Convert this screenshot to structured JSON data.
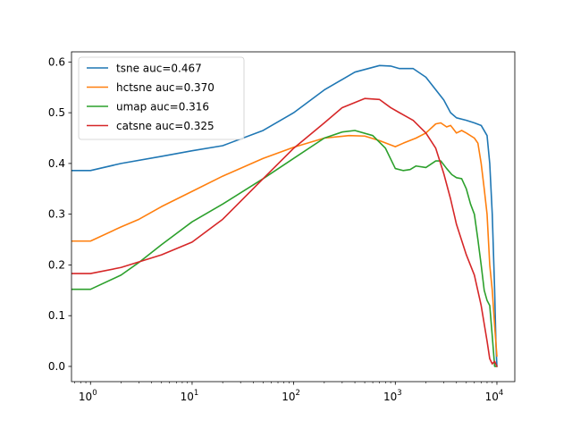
{
  "chart_data": {
    "type": "line",
    "title": "",
    "xlabel": "",
    "ylabel": "",
    "xscale": "log",
    "xlim": [
      0.65,
      15000
    ],
    "ylim": [
      -0.03,
      0.62
    ],
    "grid": false,
    "legend_position": "top-left",
    "x_ticks": [
      {
        "value": 1,
        "base": "10",
        "exp": "0"
      },
      {
        "value": 10,
        "base": "10",
        "exp": "1"
      },
      {
        "value": 100,
        "base": "10",
        "exp": "2"
      },
      {
        "value": 1000,
        "base": "10",
        "exp": "3"
      },
      {
        "value": 10000,
        "base": "10",
        "exp": "4"
      }
    ],
    "y_ticks": [
      {
        "value": 0.0,
        "label": "0.0"
      },
      {
        "value": 0.1,
        "label": "0.1"
      },
      {
        "value": 0.2,
        "label": "0.2"
      },
      {
        "value": 0.3,
        "label": "0.3"
      },
      {
        "value": 0.4,
        "label": "0.4"
      },
      {
        "value": 0.5,
        "label": "0.5"
      },
      {
        "value": 0.6,
        "label": "0.6"
      }
    ],
    "series": [
      {
        "name": "tsne auc=0.467",
        "color": "#1f77b4",
        "points": [
          [
            0.65,
            0.386
          ],
          [
            1,
            0.386
          ],
          [
            2,
            0.4
          ],
          [
            5,
            0.414
          ],
          [
            10,
            0.425
          ],
          [
            20,
            0.435
          ],
          [
            50,
            0.465
          ],
          [
            100,
            0.5
          ],
          [
            200,
            0.545
          ],
          [
            400,
            0.58
          ],
          [
            700,
            0.593
          ],
          [
            900,
            0.592
          ],
          [
            1100,
            0.587
          ],
          [
            1500,
            0.587
          ],
          [
            2000,
            0.57
          ],
          [
            3000,
            0.525
          ],
          [
            3500,
            0.5
          ],
          [
            4000,
            0.49
          ],
          [
            5000,
            0.485
          ],
          [
            6000,
            0.48
          ],
          [
            7000,
            0.475
          ],
          [
            8000,
            0.455
          ],
          [
            8500,
            0.4
          ],
          [
            9000,
            0.3
          ],
          [
            9500,
            0.15
          ],
          [
            9800,
            0.04
          ],
          [
            10000,
            0.0
          ]
        ]
      },
      {
        "name": "hctsne auc=0.370",
        "color": "#ff7f0e",
        "points": [
          [
            0.65,
            0.247
          ],
          [
            1,
            0.247
          ],
          [
            2,
            0.275
          ],
          [
            3,
            0.29
          ],
          [
            5,
            0.315
          ],
          [
            10,
            0.345
          ],
          [
            20,
            0.375
          ],
          [
            50,
            0.41
          ],
          [
            100,
            0.432
          ],
          [
            200,
            0.45
          ],
          [
            350,
            0.455
          ],
          [
            500,
            0.454
          ],
          [
            700,
            0.445
          ],
          [
            1000,
            0.433
          ],
          [
            1200,
            0.44
          ],
          [
            1600,
            0.45
          ],
          [
            2000,
            0.46
          ],
          [
            2500,
            0.478
          ],
          [
            2800,
            0.48
          ],
          [
            3200,
            0.472
          ],
          [
            3500,
            0.475
          ],
          [
            4000,
            0.46
          ],
          [
            4500,
            0.465
          ],
          [
            5000,
            0.46
          ],
          [
            6000,
            0.45
          ],
          [
            6500,
            0.44
          ],
          [
            7000,
            0.4
          ],
          [
            7500,
            0.35
          ],
          [
            8000,
            0.3
          ],
          [
            8500,
            0.2
          ],
          [
            9000,
            0.15
          ],
          [
            9500,
            0.08
          ],
          [
            10000,
            0.02
          ]
        ]
      },
      {
        "name": "umap auc=0.316",
        "color": "#2ca02c",
        "points": [
          [
            0.65,
            0.152
          ],
          [
            1,
            0.152
          ],
          [
            2,
            0.18
          ],
          [
            3,
            0.205
          ],
          [
            5,
            0.24
          ],
          [
            10,
            0.285
          ],
          [
            20,
            0.32
          ],
          [
            50,
            0.37
          ],
          [
            100,
            0.41
          ],
          [
            200,
            0.45
          ],
          [
            300,
            0.462
          ],
          [
            400,
            0.465
          ],
          [
            600,
            0.455
          ],
          [
            800,
            0.43
          ],
          [
            1000,
            0.39
          ],
          [
            1200,
            0.386
          ],
          [
            1400,
            0.388
          ],
          [
            1600,
            0.395
          ],
          [
            2000,
            0.392
          ],
          [
            2500,
            0.405
          ],
          [
            2800,
            0.405
          ],
          [
            3200,
            0.39
          ],
          [
            3600,
            0.378
          ],
          [
            4000,
            0.372
          ],
          [
            4500,
            0.37
          ],
          [
            5000,
            0.35
          ],
          [
            5500,
            0.32
          ],
          [
            6000,
            0.3
          ],
          [
            6500,
            0.25
          ],
          [
            7000,
            0.2
          ],
          [
            7500,
            0.15
          ],
          [
            8000,
            0.13
          ],
          [
            8500,
            0.12
          ],
          [
            9000,
            0.06
          ],
          [
            9500,
            0.0
          ],
          [
            10000,
            0.0
          ]
        ]
      },
      {
        "name": "catsne auc=0.325",
        "color": "#d62728",
        "points": [
          [
            0.65,
            0.183
          ],
          [
            1,
            0.183
          ],
          [
            2,
            0.195
          ],
          [
            5,
            0.22
          ],
          [
            10,
            0.245
          ],
          [
            20,
            0.29
          ],
          [
            50,
            0.37
          ],
          [
            100,
            0.43
          ],
          [
            200,
            0.48
          ],
          [
            300,
            0.51
          ],
          [
            500,
            0.528
          ],
          [
            700,
            0.526
          ],
          [
            900,
            0.51
          ],
          [
            1100,
            0.5
          ],
          [
            1500,
            0.485
          ],
          [
            2000,
            0.46
          ],
          [
            2500,
            0.43
          ],
          [
            3000,
            0.38
          ],
          [
            3500,
            0.33
          ],
          [
            4000,
            0.28
          ],
          [
            5000,
            0.22
          ],
          [
            6000,
            0.18
          ],
          [
            7000,
            0.12
          ],
          [
            8000,
            0.05
          ],
          [
            8500,
            0.015
          ],
          [
            9000,
            0.005
          ],
          [
            9500,
            0.01
          ],
          [
            10000,
            0.0
          ]
        ]
      }
    ]
  }
}
